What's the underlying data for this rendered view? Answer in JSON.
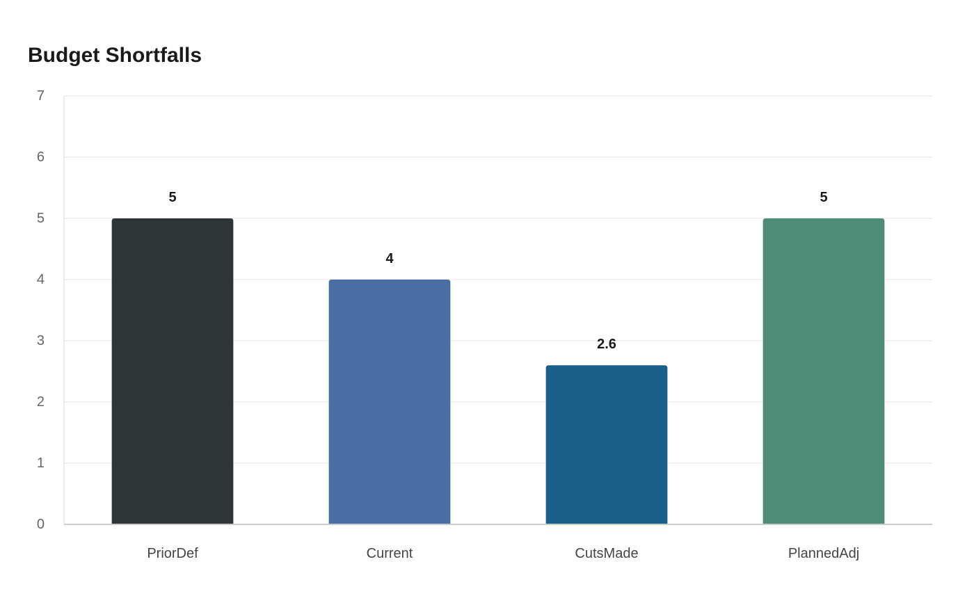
{
  "chart_data": {
    "type": "bar",
    "title": "Budget Shortfalls",
    "xlabel": "",
    "ylabel": "",
    "categories": [
      "PriorDef",
      "Current",
      "CutsMade",
      "PlannedAdj"
    ],
    "values": [
      5,
      4,
      2.6,
      5
    ],
    "data_labels": [
      "5",
      "4",
      "2.6",
      "5"
    ],
    "colors": [
      "#2d3538",
      "#4a6ea3",
      "#1a6088",
      "#4e8c7a"
    ],
    "ylim": [
      0,
      7
    ],
    "yticks": [
      0,
      1,
      2,
      3,
      4,
      5,
      6,
      7
    ],
    "grid": true,
    "legend": "none"
  }
}
